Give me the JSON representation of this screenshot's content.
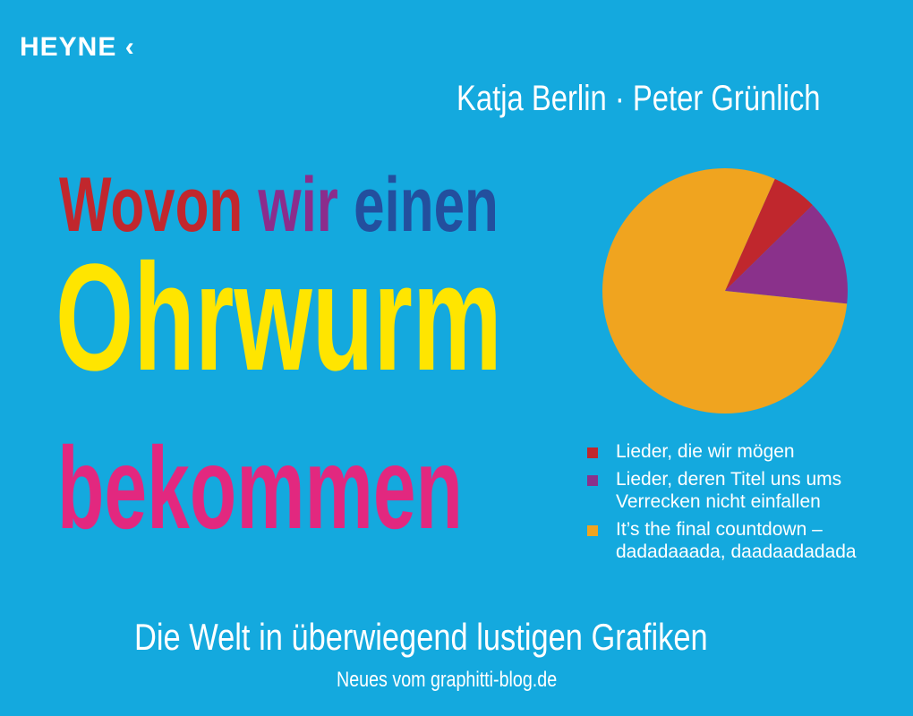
{
  "publisher": "HEYNE",
  "publisher_mark": "‹",
  "authors": "Katja Berlin · Peter Grünlich",
  "title": {
    "line1": [
      {
        "text": "Wovon ",
        "color": "#c1272d"
      },
      {
        "text": "wir ",
        "color": "#8b2d8c"
      },
      {
        "text": "einen",
        "color": "#234f9e"
      }
    ],
    "line2": "Ohrwurm",
    "line3": "bekommen"
  },
  "subtitle": "Die Welt in überwiegend lustigen Grafiken",
  "blog": "Neues vom graphitti-blog.de",
  "colors": {
    "background": "#14a9de",
    "yellow": "#ffe500",
    "pink": "#e2287f"
  },
  "chart_data": {
    "type": "pie",
    "start_angle_deg": 24,
    "slices": [
      {
        "label": "Lieder, die wir mögen",
        "value": 6,
        "color": "#c0272d"
      },
      {
        "label": "Lieder, deren Titel uns ums\nVerrecken nicht einfallen",
        "value": 14,
        "color": "#8a318b"
      },
      {
        "label": "It’s the final countdown –\ndadadaaada, daadaadadada",
        "value": 80,
        "color": "#f0a41f"
      }
    ],
    "legend": "bottom-right"
  }
}
